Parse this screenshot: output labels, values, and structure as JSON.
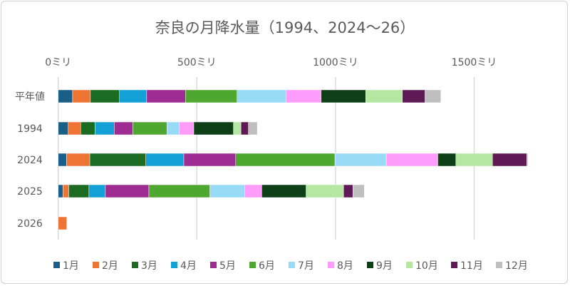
{
  "chart_data": {
    "type": "bar",
    "orientation": "horizontal",
    "stacked": true,
    "title": "奈良の月降水量（1994、2024～26）",
    "categories": [
      "平年値",
      "1994",
      "2024",
      "2025",
      "2026"
    ],
    "xlim": [
      0,
      1750
    ],
    "xticks": [
      0,
      500,
      1000,
      1500
    ],
    "xtick_labels": [
      "0ミリ",
      "500ミリ",
      "1000ミリ",
      "1500ミリ"
    ],
    "x_axis_position": "top",
    "grid": true,
    "legend_position": "bottom",
    "series": [
      {
        "name": "1月",
        "color": "#1a5f87",
        "values": [
          52,
          36,
          30,
          17,
          0
        ]
      },
      {
        "name": "2月",
        "color": "#ed7433",
        "values": [
          64,
          45,
          84,
          21,
          31
        ]
      },
      {
        "name": "3月",
        "color": "#1b6b23",
        "values": [
          105,
          52,
          202,
          73,
          0
        ]
      },
      {
        "name": "4月",
        "color": "#12a0d7",
        "values": [
          98,
          69,
          137,
          59,
          0
        ]
      },
      {
        "name": "5月",
        "color": "#9f2c92",
        "values": [
          140,
          67,
          187,
          157,
          0
        ]
      },
      {
        "name": "6月",
        "color": "#4ea72e",
        "values": [
          186,
          123,
          358,
          220,
          0
        ]
      },
      {
        "name": "7月",
        "color": "#97dbf7",
        "values": [
          176,
          44,
          185,
          125,
          0
        ]
      },
      {
        "name": "8月",
        "color": "#ff9cfb",
        "values": [
          127,
          53,
          186,
          62,
          0
        ]
      },
      {
        "name": "9月",
        "color": "#0e3f16",
        "values": [
          161,
          143,
          65,
          160,
          0
        ]
      },
      {
        "name": "10月",
        "color": "#b5e6a2",
        "values": [
          132,
          27,
          132,
          135,
          0
        ]
      },
      {
        "name": "11月",
        "color": "#5f1a55",
        "values": [
          82,
          27,
          124,
          34,
          0
        ]
      },
      {
        "name": "12月",
        "color": "#bfbfbf",
        "values": [
          57,
          32,
          4,
          41,
          0
        ]
      }
    ]
  }
}
